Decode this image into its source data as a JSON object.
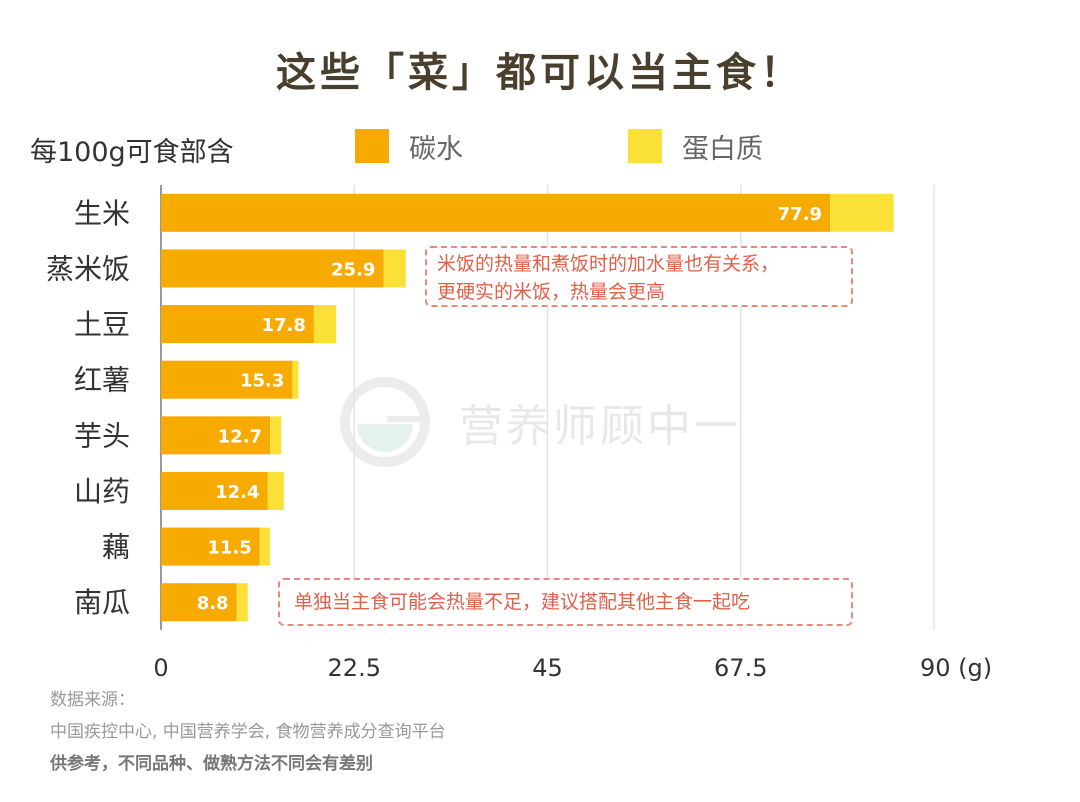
{
  "title": "这些「菜」都可以当主食！",
  "legend": {
    "label": "每100g可食部含",
    "items": [
      {
        "name": "碳水",
        "color": "#f7aa00"
      },
      {
        "name": "蛋白质",
        "color": "#fbe037"
      }
    ]
  },
  "watermark": "营养师顾中一",
  "annotations": [
    {
      "lines": [
        "米饭的热量和煮饭时的加水量也有关系，",
        "更硬实的米饭，热量会更高"
      ]
    },
    {
      "lines": [
        "单独当主食可能会热量不足，建议搭配其他主食一起吃"
      ]
    }
  ],
  "source": {
    "label": "数据来源：",
    "text": "中国疾控中心, 中国营养学会, 食物营养成分查询平台",
    "note": "供参考，不同品种、做熟方法不同会有差别"
  },
  "chart_data": {
    "type": "bar",
    "orientation": "horizontal",
    "stacked": true,
    "categories": [
      "生米",
      "蒸米饭",
      "土豆",
      "红薯",
      "芋头",
      "山药",
      "藕",
      "南瓜"
    ],
    "series": [
      {
        "name": "碳水",
        "values": [
          77.9,
          25.9,
          17.8,
          15.3,
          12.7,
          12.4,
          11.5,
          8.8
        ],
        "labels": [
          "77.9",
          "25.9",
          "17.8",
          "15.3",
          "12.7",
          "12.4",
          "11.5",
          "8.8"
        ]
      },
      {
        "name": "蛋白质",
        "values": [
          7.4,
          2.6,
          2.6,
          0.7,
          1.3,
          1.9,
          1.2,
          1.3
        ]
      }
    ],
    "xlim": [
      0,
      90
    ],
    "xticks": [
      "0",
      "22.5",
      "45",
      "67.5",
      "90 (g)"
    ],
    "xtick_values": [
      0,
      22.5,
      45,
      67.5,
      90
    ],
    "grid": true
  }
}
